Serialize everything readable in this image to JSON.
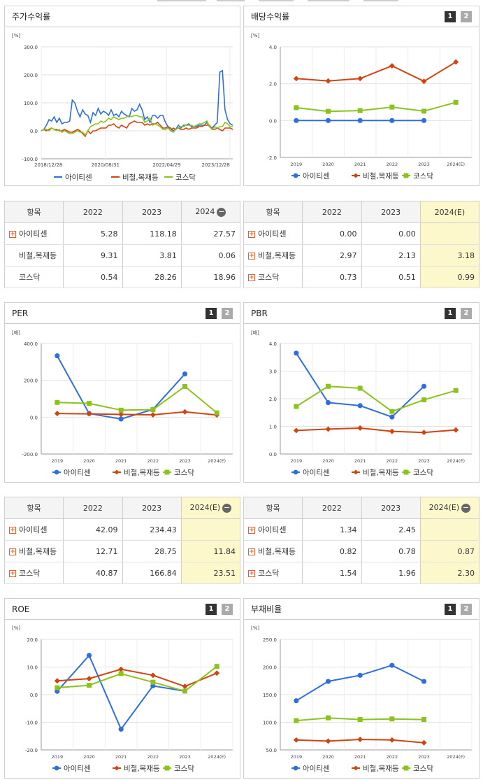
{
  "legend": [
    "아이티센",
    "비철,목재등",
    "코스닥"
  ],
  "colors": {
    "s0": "#2f6fdb",
    "s1": "#d3430f",
    "s2": "#8cc21e"
  },
  "panels": {
    "stock": {
      "title": "주가수익률",
      "unit": "[%]"
    },
    "div": {
      "title": "배당수익률",
      "unit": "[%]",
      "btn1": "1",
      "btn2": "2"
    },
    "per": {
      "title": "PER",
      "unit": "[배]",
      "btn1": "1",
      "btn2": "2"
    },
    "pbr": {
      "title": "PBR",
      "unit": "[배]",
      "btn1": "1",
      "btn2": "2"
    },
    "roe": {
      "title": "ROE",
      "unit": "[%]",
      "btn1": "1",
      "btn2": "2"
    },
    "debt": {
      "title": "부채비율",
      "unit": "[%]",
      "btn1": "1",
      "btn2": "2"
    }
  },
  "tables": {
    "stock": {
      "h": [
        "항목",
        "2022",
        "2023",
        "2024"
      ],
      "minus": "−",
      "rows": [
        [
          "아이티센",
          "5.28",
          "118.18",
          "27.57"
        ],
        [
          "비철,목재등",
          "9.31",
          "3.81",
          "0.06"
        ],
        [
          "코스닥",
          "0.54",
          "28.26",
          "18.96"
        ]
      ]
    },
    "div": {
      "h": [
        "항목",
        "2022",
        "2023",
        "2024(E)"
      ],
      "minus": "",
      "rows": [
        [
          "아이티센",
          "0.00",
          "0.00",
          ""
        ],
        [
          "비철,목재등",
          "2.97",
          "2.13",
          "3.18"
        ],
        [
          "코스닥",
          "0.73",
          "0.51",
          "0.99"
        ]
      ]
    },
    "per": {
      "h": [
        "항목",
        "2022",
        "2023",
        "2024(E)"
      ],
      "minus": "−",
      "rows": [
        [
          "아이티센",
          "42.09",
          "234.43",
          ""
        ],
        [
          "비철,목재등",
          "12.71",
          "28.75",
          "11.84"
        ],
        [
          "코스닥",
          "40.87",
          "166.84",
          "23.51"
        ]
      ]
    },
    "pbr": {
      "h": [
        "항목",
        "2022",
        "2023",
        "2024(E)"
      ],
      "minus": "−",
      "rows": [
        [
          "아이티센",
          "1.34",
          "2.45",
          ""
        ],
        [
          "비철,목재등",
          "0.82",
          "0.78",
          "0.87"
        ],
        [
          "코스닥",
          "1.54",
          "1.96",
          "2.30"
        ]
      ]
    }
  },
  "chart_data": [
    {
      "type": "line",
      "title": "주가수익률",
      "ylabel": "[%]",
      "ylim": [
        -100,
        300
      ],
      "yticks": [
        "300.0",
        "200.0",
        "100.0",
        "0.0",
        "-100.0"
      ],
      "xticks": [
        "2018/12/28",
        "2020/08/31",
        "2022/04/29",
        "2023/12/28"
      ],
      "series": [
        {
          "name": "아이티센",
          "values": [
            0,
            5,
            20,
            40,
            35,
            50,
            30,
            45,
            25,
            30,
            30,
            35,
            110,
            100,
            70,
            50,
            75,
            60,
            55,
            30,
            65,
            55,
            80,
            60,
            70,
            65,
            55,
            75,
            55,
            60,
            50,
            70,
            60,
            55,
            50,
            80,
            70,
            75,
            95,
            75,
            40,
            50,
            30,
            55,
            55,
            45,
            55,
            55,
            30,
            15,
            10,
            0,
            5,
            20,
            10,
            20,
            20,
            25,
            15,
            15,
            15,
            20,
            20,
            20,
            30,
            15,
            10,
            20,
            30,
            210,
            215,
            75,
            40,
            25,
            20
          ]
        },
        {
          "name": "비철,목재등",
          "values": [
            0,
            5,
            0,
            5,
            10,
            5,
            5,
            0,
            0,
            5,
            0,
            -5,
            -5,
            0,
            5,
            0,
            -10,
            -20,
            0,
            -10,
            0,
            0,
            5,
            10,
            10,
            10,
            20,
            20,
            25,
            15,
            10,
            20,
            15,
            10,
            25,
            30,
            35,
            30,
            30,
            30,
            20,
            25,
            20,
            25,
            25,
            30,
            20,
            10,
            10,
            15,
            0,
            10,
            5,
            10,
            5,
            5,
            10,
            5,
            10,
            10,
            10,
            15,
            15,
            20,
            20,
            20,
            5,
            5,
            10,
            5,
            0,
            10,
            10,
            10,
            5
          ]
        },
        {
          "name": "코스닥",
          "values": [
            0,
            5,
            5,
            0,
            10,
            5,
            0,
            5,
            -5,
            0,
            -5,
            -10,
            -10,
            -5,
            0,
            -5,
            -5,
            -15,
            0,
            15,
            20,
            25,
            25,
            35,
            30,
            35,
            45,
            40,
            50,
            45,
            40,
            45,
            45,
            50,
            55,
            50,
            55,
            55,
            50,
            50,
            30,
            35,
            45,
            20,
            25,
            20,
            15,
            5,
            5,
            10,
            0,
            -5,
            5,
            10,
            15,
            15,
            20,
            20,
            20,
            15,
            20,
            25,
            25,
            30,
            35,
            15,
            5,
            15,
            10,
            15,
            15,
            30,
            25,
            15,
            15
          ]
        }
      ]
    },
    {
      "type": "line",
      "title": "배당수익률",
      "ylabel": "[%]",
      "ylim": [
        -2,
        4
      ],
      "categories": [
        "2019",
        "2020",
        "2021",
        "2022",
        "2023",
        "2024(E)"
      ],
      "yticks": [
        "4.0",
        "2.0",
        "0.0",
        "-2.0"
      ],
      "series": [
        {
          "name": "아이티센",
          "values": [
            0,
            0,
            0,
            0,
            0,
            null
          ]
        },
        {
          "name": "비철,목재등",
          "values": [
            2.28,
            2.15,
            2.28,
            2.97,
            2.13,
            3.18
          ]
        },
        {
          "name": "코스닥",
          "values": [
            0.7,
            0.5,
            0.54,
            0.73,
            0.51,
            0.99
          ]
        }
      ]
    },
    {
      "type": "line",
      "title": "PER",
      "ylabel": "[배]",
      "ylim": [
        -200,
        400
      ],
      "categories": [
        "2019",
        "2020",
        "2021",
        "2022",
        "2023",
        "2024(E)"
      ],
      "yticks": [
        "400.0",
        "200.0",
        "0.0",
        "-200.0"
      ],
      "series": [
        {
          "name": "아이티센",
          "values": [
            333,
            20,
            -10,
            42.09,
            234.43,
            null
          ]
        },
        {
          "name": "비철,목재등",
          "values": [
            20,
            18,
            15,
            12.71,
            28.75,
            11.84
          ]
        },
        {
          "name": "코스닥",
          "values": [
            80,
            75,
            38,
            40.87,
            166.84,
            23.51
          ]
        }
      ]
    },
    {
      "type": "line",
      "title": "PBR",
      "ylabel": "[배]",
      "ylim": [
        0,
        4
      ],
      "categories": [
        "2019",
        "2020",
        "2021",
        "2022",
        "2023",
        "2024(E)"
      ],
      "yticks": [
        "4.0",
        "3.0",
        "2.0",
        "1.0",
        "0.0"
      ],
      "series": [
        {
          "name": "아이티센",
          "values": [
            3.65,
            1.86,
            1.75,
            1.34,
            2.45,
            null
          ]
        },
        {
          "name": "비철,목재등",
          "values": [
            0.85,
            0.9,
            0.94,
            0.82,
            0.78,
            0.87
          ]
        },
        {
          "name": "코스닥",
          "values": [
            1.72,
            2.45,
            2.38,
            1.54,
            1.96,
            2.3
          ]
        }
      ]
    },
    {
      "type": "line",
      "title": "ROE",
      "ylabel": "[%]",
      "ylim": [
        -20,
        20
      ],
      "categories": [
        "2019",
        "2020",
        "2021",
        "2022",
        "2023",
        "2024(E)"
      ],
      "yticks": [
        "20.0",
        "10.0",
        "0.0",
        "-10.0",
        "-20.0"
      ],
      "series": [
        {
          "name": "아이티센",
          "values": [
            1.2,
            14.2,
            -12.5,
            3.2,
            1.3,
            null
          ]
        },
        {
          "name": "비철,목재등",
          "values": [
            5.0,
            5.8,
            9.2,
            7.0,
            3.0,
            7.8
          ]
        },
        {
          "name": "코스닥",
          "values": [
            2.5,
            3.4,
            7.6,
            4.5,
            1.3,
            10.2
          ]
        }
      ]
    },
    {
      "type": "line",
      "title": "부채비율",
      "ylabel": "[%]",
      "ylim": [
        50,
        250
      ],
      "categories": [
        "2019",
        "2020",
        "2021",
        "2022",
        "2023",
        "2024(E)"
      ],
      "yticks": [
        "250.0",
        "200.0",
        "150.0",
        "100.0",
        "50.0"
      ],
      "series": [
        {
          "name": "아이티센",
          "values": [
            139,
            174,
            185,
            203,
            174,
            null
          ]
        },
        {
          "name": "비철,목재등",
          "values": [
            68,
            66,
            69,
            68,
            63,
            null
          ]
        },
        {
          "name": "코스닥",
          "values": [
            103,
            108,
            105,
            106,
            105,
            null
          ]
        }
      ]
    }
  ]
}
